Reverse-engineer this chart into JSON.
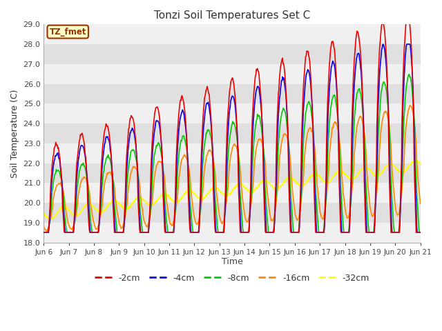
{
  "title": "Tonzi Soil Temperatures Set C",
  "ylabel": "Soil Temperature (C)",
  "xlabel": "Time",
  "ylim": [
    18.0,
    29.0
  ],
  "yticks": [
    18.0,
    19.0,
    20.0,
    21.0,
    22.0,
    23.0,
    24.0,
    25.0,
    26.0,
    27.0,
    28.0,
    29.0
  ],
  "fig_bg": "#ffffff",
  "plot_bg_light": "#f0f0f0",
  "plot_bg_dark": "#e0e0e0",
  "grid_color": "#ffffff",
  "legend_label": "TZ_fmet",
  "legend_box_facecolor": "#ffffcc",
  "legend_box_edgecolor": "#993300",
  "series": {
    "-2cm": {
      "color": "#ee0000",
      "lw": 1.2
    },
    "-4cm": {
      "color": "#0000ee",
      "lw": 1.2
    },
    "-8cm": {
      "color": "#00cc00",
      "lw": 1.2
    },
    "-16cm": {
      "color": "#ff8800",
      "lw": 1.2
    },
    "-32cm": {
      "color": "#ffff00",
      "lw": 1.5
    }
  },
  "xtick_labels": [
    "Jun 6",
    "Jun 7",
    "Jun 8",
    "Jun 9",
    "Jun 10",
    "Jun 11",
    "Jun 12",
    "Jun 13",
    "Jun 14",
    "Jun 15",
    "Jun 16",
    "Jun 17",
    "Jun 18",
    "Jun 19",
    "Jun 20",
    "Jun 21"
  ],
  "n_days": 15,
  "pts_per_day": 48
}
